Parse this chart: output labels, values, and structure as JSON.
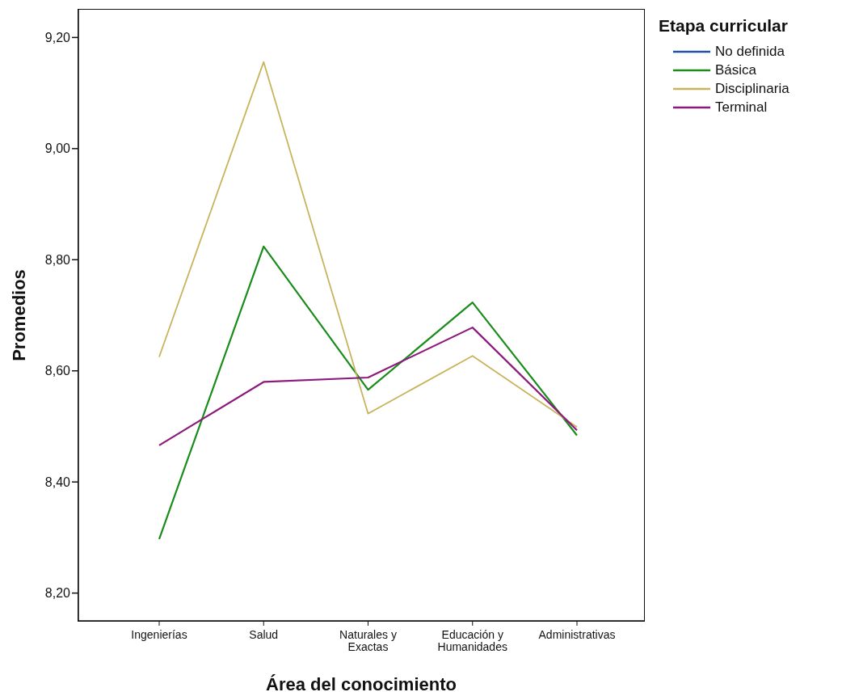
{
  "chart_data": {
    "type": "line",
    "xlabel": "Área del conocimiento",
    "ylabel": "Promedios",
    "legend_title": "Etapa curricular",
    "categories": [
      "Ingenierías",
      "Salud",
      "Naturales y Exactas",
      "Educación y Humanidades",
      "Administrativas"
    ],
    "series": [
      {
        "name": "No definida",
        "color": "#2050a8",
        "values": [
          null,
          null,
          null,
          null,
          null
        ]
      },
      {
        "name": "Básica",
        "color": "#1a8c1a",
        "values": [
          8.297,
          8.824,
          8.566,
          8.723,
          8.484
        ]
      },
      {
        "name": "Disciplinaria",
        "color": "#c8b45c",
        "values": [
          8.625,
          9.156,
          8.523,
          8.627,
          8.499
        ]
      },
      {
        "name": "Terminal",
        "color": "#8c1a7c",
        "values": [
          8.466,
          8.58,
          8.588,
          8.678,
          8.493
        ]
      }
    ],
    "ylim": [
      8.15,
      9.25
    ],
    "yticks": [
      {
        "value": 8.2,
        "label": "8,20"
      },
      {
        "value": 8.4,
        "label": "8,40"
      },
      {
        "value": 8.6,
        "label": "8,60"
      },
      {
        "value": 8.8,
        "label": "8,80"
      },
      {
        "value": 9.0,
        "label": "9,00"
      },
      {
        "value": 9.2,
        "label": "9,20"
      }
    ],
    "grid": false,
    "legend": "top right",
    "marker": "none",
    "line_style": "solid"
  }
}
